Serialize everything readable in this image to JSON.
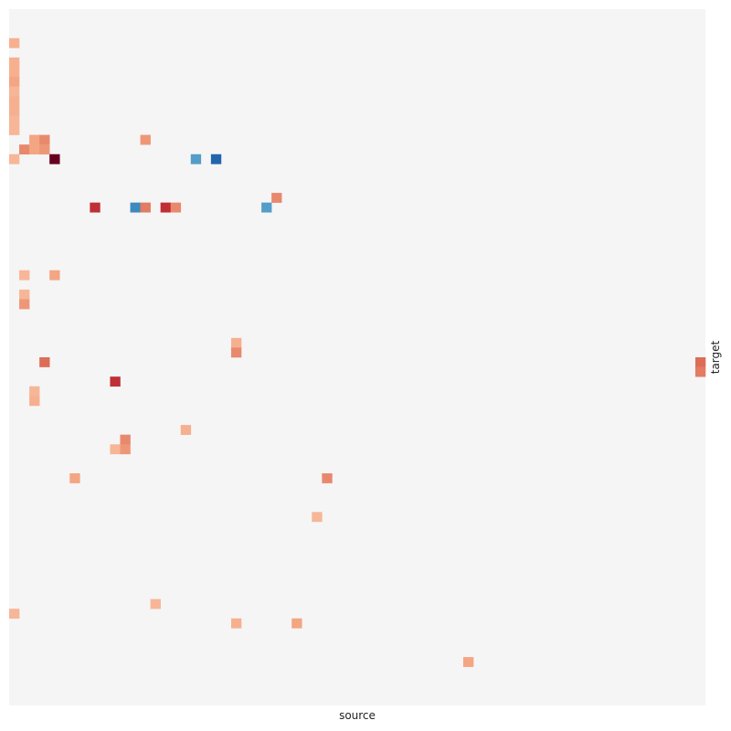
{
  "chart_data": {
    "type": "heatmap",
    "xlabel": "source",
    "ylabel": "target",
    "n_cols": 69,
    "n_rows": 72,
    "background_color": "#f5f5f5",
    "colormap": "RdBu_r",
    "cells": [
      {
        "x": 0,
        "y": 3,
        "v": 0.45
      },
      {
        "x": 0,
        "y": 5,
        "v": 0.45
      },
      {
        "x": 0,
        "y": 6,
        "v": 0.45
      },
      {
        "x": 0,
        "y": 7,
        "v": 0.5
      },
      {
        "x": 0,
        "y": 8,
        "v": 0.42
      },
      {
        "x": 0,
        "y": 9,
        "v": 0.45
      },
      {
        "x": 0,
        "y": 10,
        "v": 0.45
      },
      {
        "x": 0,
        "y": 11,
        "v": 0.42
      },
      {
        "x": 0,
        "y": 12,
        "v": 0.42
      },
      {
        "x": 1,
        "y": 14,
        "v": 0.6
      },
      {
        "x": 2,
        "y": 13,
        "v": 0.5
      },
      {
        "x": 2,
        "y": 14,
        "v": 0.5
      },
      {
        "x": 3,
        "y": 13,
        "v": 0.6
      },
      {
        "x": 3,
        "y": 14,
        "v": 0.55
      },
      {
        "x": 0,
        "y": 15,
        "v": 0.42
      },
      {
        "x": 4,
        "y": 15,
        "v": 1.0
      },
      {
        "x": 13,
        "y": 13,
        "v": 0.55
      },
      {
        "x": 18,
        "y": 15,
        "v": -0.45
      },
      {
        "x": 20,
        "y": 15,
        "v": -0.75
      },
      {
        "x": 26,
        "y": 19,
        "v": 0.6
      },
      {
        "x": 8,
        "y": 20,
        "v": 0.85
      },
      {
        "x": 12,
        "y": 20,
        "v": -0.55
      },
      {
        "x": 13,
        "y": 20,
        "v": 0.65
      },
      {
        "x": 15,
        "y": 20,
        "v": 0.85
      },
      {
        "x": 16,
        "y": 20,
        "v": 0.6
      },
      {
        "x": 25,
        "y": 20,
        "v": -0.45
      },
      {
        "x": 1,
        "y": 27,
        "v": 0.42
      },
      {
        "x": 4,
        "y": 27,
        "v": 0.5
      },
      {
        "x": 1,
        "y": 29,
        "v": 0.42
      },
      {
        "x": 1,
        "y": 30,
        "v": 0.55
      },
      {
        "x": 22,
        "y": 34,
        "v": 0.45
      },
      {
        "x": 22,
        "y": 35,
        "v": 0.6
      },
      {
        "x": 3,
        "y": 36,
        "v": 0.7
      },
      {
        "x": 68,
        "y": 36,
        "v": 0.7
      },
      {
        "x": 68,
        "y": 37,
        "v": 0.65
      },
      {
        "x": 10,
        "y": 38,
        "v": 0.85
      },
      {
        "x": 2,
        "y": 39,
        "v": 0.42
      },
      {
        "x": 2,
        "y": 40,
        "v": 0.45
      },
      {
        "x": 17,
        "y": 43,
        "v": 0.45
      },
      {
        "x": 11,
        "y": 44,
        "v": 0.6
      },
      {
        "x": 10,
        "y": 45,
        "v": 0.42
      },
      {
        "x": 11,
        "y": 45,
        "v": 0.55
      },
      {
        "x": 6,
        "y": 48,
        "v": 0.5
      },
      {
        "x": 31,
        "y": 48,
        "v": 0.6
      },
      {
        "x": 30,
        "y": 52,
        "v": 0.42
      },
      {
        "x": 14,
        "y": 61,
        "v": 0.42
      },
      {
        "x": 0,
        "y": 62,
        "v": 0.42
      },
      {
        "x": 22,
        "y": 63,
        "v": 0.45
      },
      {
        "x": 28,
        "y": 63,
        "v": 0.5
      },
      {
        "x": 45,
        "y": 67,
        "v": 0.5
      }
    ]
  }
}
